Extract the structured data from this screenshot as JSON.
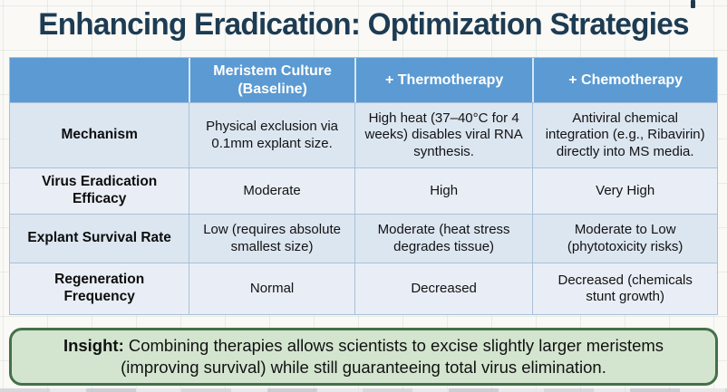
{
  "title": "Enhancing Eradication: Optimization Strategies",
  "table": {
    "columns": [
      "",
      "Meristem Culture (Baseline)",
      "+ Thermotherapy",
      "+ Chemotherapy"
    ],
    "rows": [
      {
        "label": "Mechanism",
        "cells": [
          "Physical exclusion via 0.1mm explant size.",
          "High heat (37–40°C for 4 weeks) disables viral RNA synthesis.",
          "Antiviral chemical integration (e.g., Ribavirin) directly into MS media."
        ]
      },
      {
        "label": "Virus Eradication Efficacy",
        "cells": [
          "Moderate",
          "High",
          "Very High"
        ]
      },
      {
        "label": "Explant Survival Rate",
        "cells": [
          "Low (requires absolute smallest size)",
          "Moderate (heat stress degrades tissue)",
          "Moderate to Low (phytotoxicity risks)"
        ]
      },
      {
        "label": "Regeneration Frequency",
        "cells": [
          "Normal",
          "Decreased",
          "Decreased (chemicals stunt growth)"
        ]
      }
    ]
  },
  "insight": {
    "label": "Insight:",
    "text": " Combining therapies allows scientists to excise slightly larger meristems (improving survival) while still guaranteeing total virus elimination."
  },
  "colors": {
    "title_text": "#1d3c53",
    "header_bg": "#5b9ad2",
    "header_text": "#ffffff",
    "row_odd_bg": "#dce6f1",
    "row_even_bg": "#e9eef6",
    "table_border": "#a9c0d8",
    "insight_bg": "#d3e5cf",
    "insight_border": "#44704a"
  }
}
